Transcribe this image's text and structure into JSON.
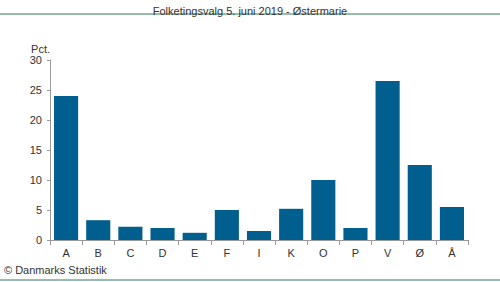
{
  "chart_data": {
    "type": "bar",
    "title": "Folketingsvalg 5. juni 2019 - Østermarie",
    "ylabel": "Pct.",
    "annotations": [
      "© Danmarks Statistik"
    ],
    "categories": [
      "A",
      "B",
      "C",
      "D",
      "E",
      "F",
      "I",
      "K",
      "O",
      "P",
      "V",
      "Ø",
      "Å"
    ],
    "values": [
      24.0,
      3.3,
      2.2,
      2.0,
      1.2,
      5.0,
      1.5,
      5.2,
      10.0,
      2.0,
      26.5,
      12.5,
      5.5
    ],
    "color": "#005f8f",
    "ylim": [
      0,
      30
    ],
    "yticks": [
      0,
      5,
      10,
      15,
      20,
      25,
      30
    ],
    "grid": false
  }
}
